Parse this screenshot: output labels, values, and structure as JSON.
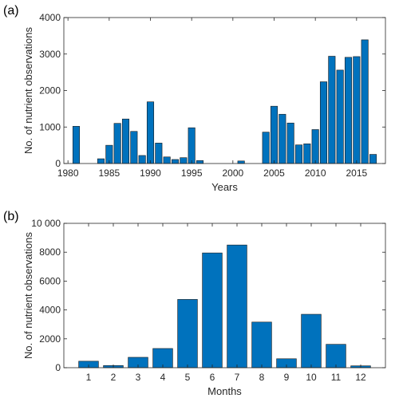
{
  "chart_data": [
    {
      "type": "bar",
      "panel_label": "(a)",
      "xlabel": "Years",
      "ylabel": "No. of nutrient observations",
      "xlim": [
        1979.5,
        2018.5
      ],
      "ylim": [
        0,
        4000
      ],
      "xticks": [
        "1980",
        "1985",
        "1990",
        "1995",
        "2000",
        "2005",
        "2010",
        "2015"
      ],
      "xtick_values": [
        1980,
        1985,
        1990,
        1995,
        2000,
        2005,
        2010,
        2015
      ],
      "yticks": [
        "0",
        "1000",
        "2000",
        "3000",
        "4000"
      ],
      "ytick_values": [
        0,
        1000,
        2000,
        3000,
        4000
      ],
      "categories": [
        1981,
        1984,
        1985,
        1986,
        1987,
        1988,
        1989,
        1990,
        1991,
        1992,
        1993,
        1994,
        1995,
        1996,
        2001,
        2004,
        2005,
        2006,
        2007,
        2008,
        2009,
        2010,
        2011,
        2012,
        2013,
        2014,
        2015,
        2016,
        2017
      ],
      "values": [
        1020,
        130,
        500,
        1100,
        1220,
        880,
        220,
        1690,
        560,
        180,
        110,
        160,
        980,
        80,
        70,
        860,
        1570,
        1350,
        1110,
        510,
        540,
        930,
        2240,
        2940,
        2560,
        2910,
        2930,
        3390,
        250
      ],
      "bar_color": "#0072BD",
      "grid": false
    },
    {
      "type": "bar",
      "panel_label": "(b)",
      "xlabel": "Months",
      "ylabel": "No. of nutrient observations",
      "xlim": [
        0,
        13
      ],
      "ylim": [
        0,
        10000
      ],
      "xticks": [
        "1",
        "2",
        "3",
        "4",
        "5",
        "6",
        "7",
        "8",
        "9",
        "10",
        "11",
        "12"
      ],
      "xtick_values": [
        1,
        2,
        3,
        4,
        5,
        6,
        7,
        8,
        9,
        10,
        11,
        12
      ],
      "yticks": [
        "0",
        "2000",
        "4000",
        "6000",
        "8000",
        "10 000"
      ],
      "ytick_values": [
        0,
        2000,
        4000,
        6000,
        8000,
        10000
      ],
      "categories": [
        1,
        2,
        3,
        4,
        5,
        6,
        7,
        8,
        9,
        10,
        11,
        12
      ],
      "values": [
        450,
        150,
        720,
        1330,
        4730,
        7950,
        8500,
        3160,
        620,
        3700,
        1620,
        130
      ],
      "bar_color": "#0072BD",
      "grid": false
    }
  ]
}
